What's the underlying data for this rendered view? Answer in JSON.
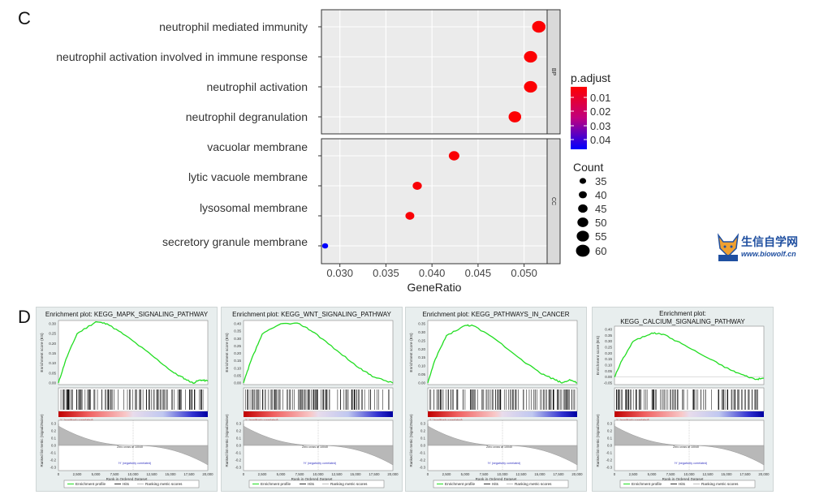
{
  "panels": {
    "c": "C",
    "d": "D"
  },
  "logo": {
    "name": "生信自学网",
    "url": "www.biowolf.cn"
  },
  "chart_data": [
    {
      "type": "scatter",
      "xlabel": "GeneRatio",
      "xlim": [
        0.028,
        0.0525
      ],
      "xticks": [
        0.03,
        0.035,
        0.04,
        0.045,
        0.05
      ],
      "xtick_labels": [
        "0.030",
        "0.035",
        "0.040",
        "0.045",
        "0.050"
      ],
      "grid": true,
      "facets": [
        {
          "label": "BP",
          "terms": [
            {
              "term": "neutrophil mediated immunity",
              "gene_ratio": 0.0516,
              "count": 59,
              "p_adjust": 0.0005
            },
            {
              "term": "neutrophil activation involved in immune response",
              "gene_ratio": 0.0507,
              "count": 58,
              "p_adjust": 0.0005
            },
            {
              "term": "neutrophil activation",
              "gene_ratio": 0.0507,
              "count": 58,
              "p_adjust": 0.0005
            },
            {
              "term": "neutrophil degranulation",
              "gene_ratio": 0.049,
              "count": 56,
              "p_adjust": 0.0005
            }
          ]
        },
        {
          "label": "CC",
          "terms": [
            {
              "term": "vacuolar membrane",
              "gene_ratio": 0.0424,
              "count": 49,
              "p_adjust": 0.0008
            },
            {
              "term": "lytic vacuole membrane",
              "gene_ratio": 0.0384,
              "count": 44,
              "p_adjust": 0.001
            },
            {
              "term": "lysosomal membrane",
              "gene_ratio": 0.0376,
              "count": 43,
              "p_adjust": 0.001
            },
            {
              "term": "secretory granule membrane",
              "gene_ratio": 0.0284,
              "count": 33,
              "p_adjust": 0.045
            }
          ]
        }
      ],
      "color_legend": {
        "title": "p.adjust",
        "range": [
          0.0,
          0.045
        ],
        "ticks": [
          "0.01",
          "0.02",
          "0.03",
          "0.04"
        ],
        "colors": [
          "#ff0000",
          "#0000ff"
        ]
      },
      "size_legend": {
        "title": "Count",
        "values": [
          "35",
          "40",
          "45",
          "50",
          "55",
          "60"
        ]
      }
    },
    {
      "type": "line",
      "title": "Enrichment plot: KEGG_MAPK_SIGNALING_PATHWAY",
      "ylabel": "Enrichment score (ES)",
      "ylim": [
        0.0,
        0.3
      ],
      "yticks": [
        "0.30",
        "0.25",
        "0.20",
        "0.15",
        "0.10",
        "0.05",
        "0.00"
      ],
      "x": [
        0,
        1000,
        2500,
        5000,
        6500,
        9000,
        12500,
        15500,
        17000,
        18000,
        19000,
        20000
      ],
      "es": [
        0.0,
        0.12,
        0.25,
        0.31,
        0.3,
        0.24,
        0.14,
        0.05,
        0.02,
        0.0,
        0.015,
        0.01
      ],
      "rank_ylabel": "Ranked list metric (Signal2Noise)",
      "rank_yticks": [
        "0.3",
        "0.2",
        "0.1",
        "0.0",
        "-0.1",
        "-0.2",
        "-0.3"
      ],
      "xlabel": "Rank in Ordered Dataset",
      "xticks": [
        "0",
        "2,500",
        "5,000",
        "7,500",
        "10,000",
        "12,500",
        "15,000",
        "17,500",
        "20,000"
      ],
      "pos_label": "'L' (positively correlated)",
      "neg_label": "'H' (negatively correlated)",
      "zero_cross": "Zero cross at 10040",
      "legend": [
        "Enrichment profile",
        "Hits",
        "Ranking metric scores"
      ]
    },
    {
      "type": "line",
      "title": "Enrichment plot: KEGG_WNT_SIGNALING_PATHWAY",
      "ylabel": "Enrichment score (ES)",
      "ylim": [
        0.0,
        0.4
      ],
      "yticks": [
        "0.40",
        "0.35",
        "0.30",
        "0.25",
        "0.20",
        "0.15",
        "0.10",
        "0.05",
        "0.00"
      ],
      "x": [
        0,
        1000,
        2500,
        5000,
        7500,
        9500,
        12500,
        15500,
        17500,
        20000
      ],
      "es": [
        0.0,
        0.15,
        0.33,
        0.4,
        0.4,
        0.34,
        0.22,
        0.1,
        0.04,
        0.0
      ],
      "rank_ylabel": "Ranked list metric (Signal2Noise)",
      "rank_yticks": [
        "0.3",
        "0.2",
        "0.1",
        "0.0",
        "-0.1",
        "-0.2",
        "-0.3"
      ],
      "xlabel": "Rank in Ordered Dataset",
      "xticks": [
        "0",
        "2,500",
        "5,000",
        "7,500",
        "10,000",
        "12,500",
        "15,000",
        "17,500",
        "20,000"
      ],
      "pos_label": "'L' (positively correlated)",
      "neg_label": "'H' (negatively correlated)",
      "zero_cross": "Zero cross at 10040",
      "legend": [
        "Enrichment profile",
        "Hits",
        "Ranking metric scores"
      ]
    },
    {
      "type": "line",
      "title": "Enrichment plot: KEGG_PATHWAYS_IN_CANCER",
      "ylabel": "Enrichment score (ES)",
      "ylim": [
        0.0,
        0.35
      ],
      "yticks": [
        "0.35",
        "0.30",
        "0.25",
        "0.20",
        "0.15",
        "0.10",
        "0.05",
        "0.00"
      ],
      "x": [
        0,
        1000,
        2500,
        5000,
        6000,
        9000,
        12500,
        15000,
        17000,
        18000,
        19000,
        20000
      ],
      "es": [
        0.0,
        0.14,
        0.28,
        0.34,
        0.34,
        0.26,
        0.14,
        0.06,
        0.02,
        0.0,
        0.02,
        0.0
      ],
      "rank_ylabel": "Ranked list metric (Signal2Noise)",
      "rank_yticks": [
        "0.3",
        "0.2",
        "0.1",
        "0.0",
        "-0.1",
        "-0.2",
        "-0.3"
      ],
      "xlabel": "Rank in Ordered Dataset",
      "xticks": [
        "0",
        "2,500",
        "5,000",
        "7,500",
        "10,000",
        "12,500",
        "15,000",
        "17,500",
        "20,000"
      ],
      "pos_label": "'L' (positively correlated)",
      "neg_label": "'H' (negatively correlated)",
      "zero_cross": "Zero cross at 10040",
      "legend": [
        "Enrichment profile",
        "Hits",
        "Ranking metric scores"
      ]
    },
    {
      "type": "line",
      "title": "Enrichment plot: KEGG_CALCIUM_SIGNALING_PATHWAY",
      "title_lines": [
        "Enrichment plot:",
        "KEGG_CALCIUM_SIGNALING_PATHWAY"
      ],
      "ylabel": "Enrichment score (ES)",
      "ylim": [
        -0.05,
        0.4
      ],
      "yticks": [
        "0.40",
        "0.35",
        "0.30",
        "0.25",
        "0.20",
        "0.15",
        "0.10",
        "0.05",
        "0.00",
        "-0.05"
      ],
      "x": [
        0,
        1000,
        2500,
        5000,
        6500,
        9000,
        12500,
        15500,
        17500,
        19000,
        20000
      ],
      "es": [
        0.0,
        0.14,
        0.3,
        0.37,
        0.36,
        0.28,
        0.16,
        0.06,
        0.01,
        -0.02,
        -0.01
      ],
      "rank_ylabel": "Ranked list metric (Signal2Noise)",
      "rank_yticks": [
        "0.3",
        "0.2",
        "0.1",
        "0.0",
        "-0.1",
        "-0.2",
        "-0.3"
      ],
      "xlabel": "Rank in Ordered Dataset",
      "xticks": [
        "0",
        "2,500",
        "5,000",
        "7,500",
        "10,000",
        "12,500",
        "15,000",
        "17,500",
        "20,000"
      ],
      "pos_label": "'L' (positively correlated)",
      "neg_label": "'H' (negatively correlated)",
      "zero_cross": "Zero cross at 10040",
      "legend": [
        "Enrichment profile",
        "Hits",
        "Ranking metric scores"
      ]
    }
  ]
}
